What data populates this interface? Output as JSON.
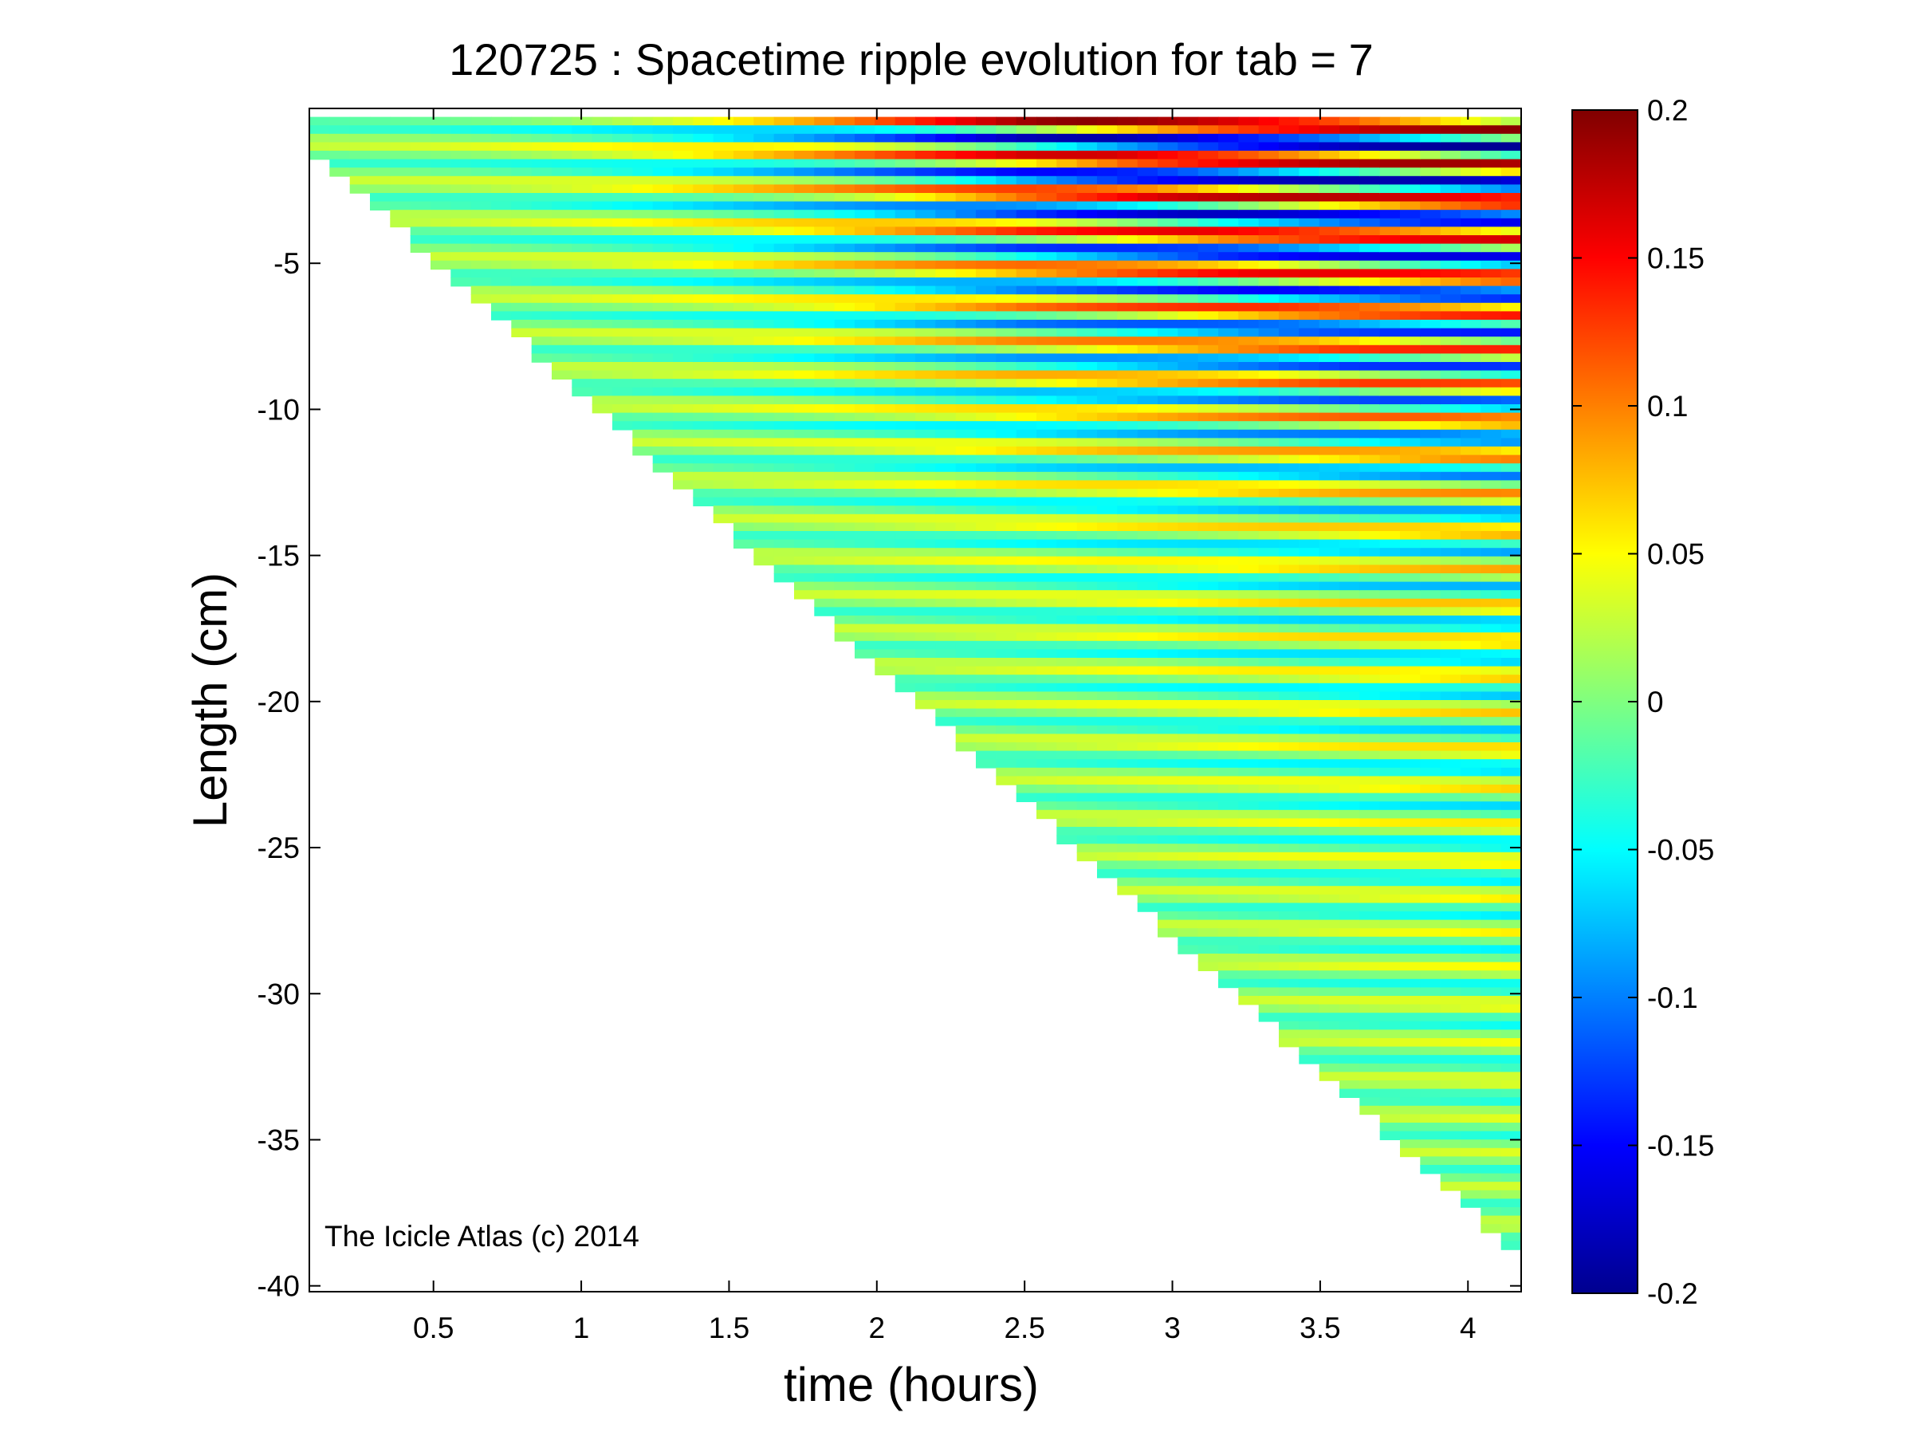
{
  "title": "120725 : Spacetime ripple evolution for tab = 7",
  "watermark": "The Icicle Atlas (c) 2014",
  "chart_data": {
    "type": "heatmap",
    "title": "120725 : Spacetime ripple evolution for tab = 7",
    "xlabel": "time (hours)",
    "ylabel": "Length (cm)",
    "xlim": [
      0.08,
      4.18
    ],
    "ylim": [
      -40.2,
      0.3
    ],
    "xticks": [
      0.5,
      1,
      1.5,
      2,
      2.5,
      3,
      3.5,
      4
    ],
    "xtick_labels": [
      "0.5",
      "1",
      "1.5",
      "2",
      "2.5",
      "3",
      "3.5",
      "4"
    ],
    "yticks": [
      -5,
      -10,
      -15,
      -20,
      -25,
      -30,
      -35,
      -40
    ],
    "ytick_labels": [
      "-5",
      "-10",
      "-15",
      "-20",
      "-25",
      "-30",
      "-35",
      "-40"
    ],
    "grid": false,
    "colormap": "jet",
    "colorbar": {
      "range": [
        -0.2,
        0.2
      ],
      "ticks": [
        0.2,
        0.15,
        0.1,
        0.05,
        0,
        -0.05,
        -0.1,
        -0.15,
        -0.2
      ],
      "tick_labels": [
        "0.2",
        "0.15",
        "0.1",
        "0.05",
        "0",
        "-0.05",
        "-0.1",
        "-0.15",
        "-0.2"
      ]
    },
    "data_boundary": {
      "description": "icicle tip length vs time; cells below the tip are empty (white)",
      "points": [
        [
          0.08,
          -1.0
        ],
        [
          4.18,
          -39.0
        ]
      ]
    },
    "values_approx": "banded ripple amplitudes; strongest (about ±0.2) near top rows after 2.5 hours, near 0 near the tip"
  },
  "colors": {
    "background": "#ffffff",
    "colormap_stops": [
      "#00008f",
      "#0000ff",
      "#00ffff",
      "#ffff00",
      "#ff0000",
      "#800000"
    ]
  }
}
